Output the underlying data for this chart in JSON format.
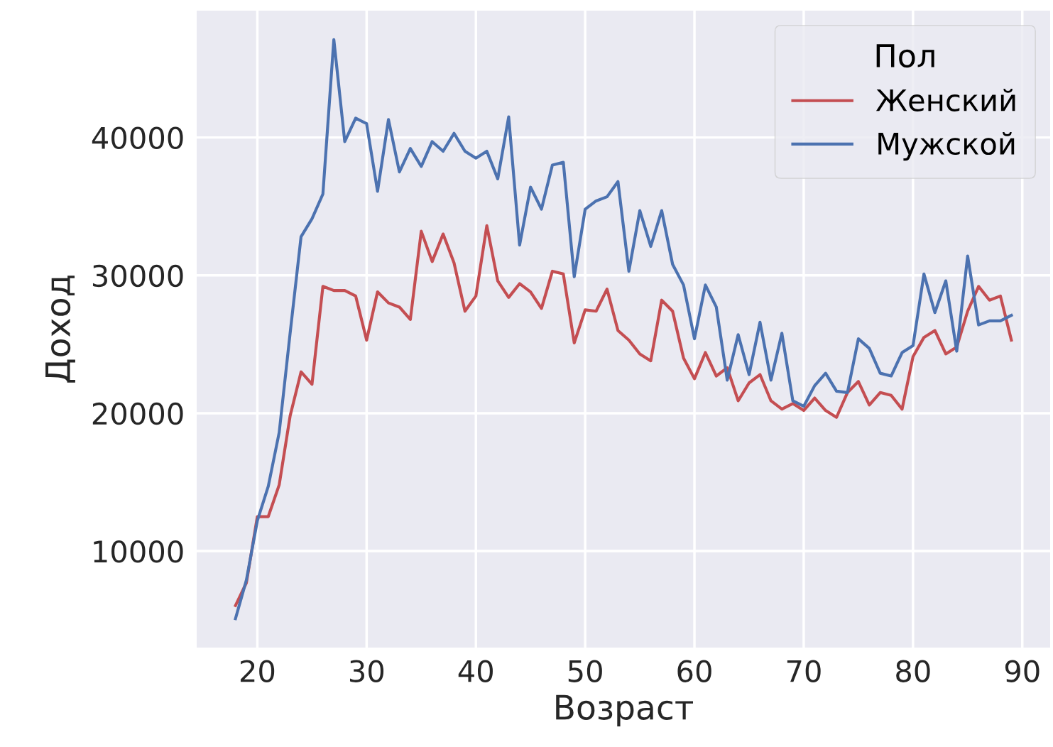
{
  "chart_data": {
    "type": "line",
    "xlabel": "Возраст",
    "ylabel": "Доход",
    "legend_title": "Пол",
    "x": [
      18,
      19,
      20,
      21,
      22,
      23,
      24,
      25,
      26,
      27,
      28,
      29,
      30,
      31,
      32,
      33,
      34,
      35,
      36,
      37,
      38,
      39,
      40,
      41,
      42,
      43,
      44,
      45,
      46,
      47,
      48,
      49,
      50,
      51,
      52,
      53,
      54,
      55,
      56,
      57,
      58,
      59,
      60,
      61,
      62,
      63,
      64,
      65,
      66,
      67,
      68,
      69,
      70,
      71,
      72,
      73,
      74,
      75,
      76,
      77,
      78,
      79,
      80,
      81,
      82,
      83,
      84,
      85,
      86,
      87,
      88,
      89
    ],
    "series": [
      {
        "name": "Женский",
        "color": "#c44e52",
        "values": [
          6050,
          7700,
          12500,
          12500,
          14800,
          19800,
          23000,
          22100,
          29200,
          28900,
          28900,
          28500,
          25300,
          28800,
          28000,
          27700,
          26800,
          33200,
          31000,
          33000,
          30900,
          27400,
          28500,
          33600,
          29600,
          28400,
          29400,
          28800,
          27600,
          30300,
          30100,
          25100,
          27500,
          27400,
          29000,
          26000,
          25300,
          24300,
          23800,
          28200,
          27400,
          24000,
          22500,
          24400,
          22700,
          23300,
          20900,
          22200,
          22800,
          20900,
          20300,
          20700,
          20200,
          21100,
          20200,
          19700,
          21500,
          22300,
          20600,
          21500,
          21300,
          20300,
          24100,
          25500,
          26000,
          24300,
          24800,
          27400,
          29200,
          28200,
          28500,
          25300
        ]
      },
      {
        "name": "Мужской",
        "color": "#4c72b0",
        "values": [
          5100,
          7900,
          12200,
          14700,
          18600,
          25800,
          32800,
          34100,
          35900,
          47100,
          39700,
          41400,
          41000,
          36100,
          41300,
          37500,
          39200,
          37900,
          39700,
          39000,
          40300,
          39000,
          38500,
          39000,
          37000,
          41500,
          32200,
          36400,
          34800,
          38000,
          38200,
          29900,
          34800,
          35400,
          35700,
          36800,
          30300,
          34700,
          32100,
          34700,
          30800,
          29300,
          25400,
          29300,
          27700,
          22400,
          25700,
          22800,
          26600,
          22400,
          25800,
          20900,
          20500,
          22000,
          22900,
          21600,
          21500,
          25400,
          24700,
          22900,
          22700,
          24400,
          24900,
          30100,
          27300,
          29600,
          24500,
          31400,
          26400,
          26700,
          26700,
          27100
        ]
      }
    ],
    "xlim": [
      14.45,
      92.55
    ],
    "ylim": [
      3000,
      49200
    ],
    "xticks": [
      20,
      30,
      40,
      50,
      60,
      70,
      80,
      90
    ],
    "yticks": [
      10000,
      20000,
      30000,
      40000
    ],
    "grid": true,
    "legend": "top right",
    "marker": "none",
    "line_style": "solid"
  }
}
